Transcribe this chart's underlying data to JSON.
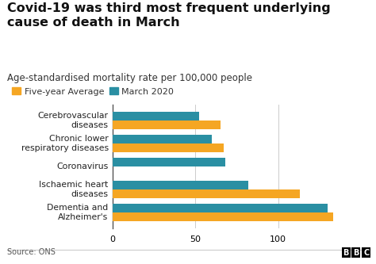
{
  "title": "Covid-19 was third most frequent underlying\ncause of death in March",
  "subtitle": "Age-standardised mortality rate per 100,000 people",
  "categories": [
    "Cerebrovascular\ndiseases",
    "Chronic lower\nrespiratory diseases",
    "Coronavirus",
    "Ischaemic heart\ndiseases",
    "Dementia and\nAlzheimer's"
  ],
  "march_2020": [
    52,
    60,
    68,
    82,
    130
  ],
  "five_year_avg": [
    65,
    67,
    0,
    113,
    133
  ],
  "color_march": "#2a8fa3",
  "color_avg": "#f5a623",
  "legend_labels": [
    "Five-year Average",
    "March 2020"
  ],
  "xlim": [
    0,
    150
  ],
  "xticks": [
    0,
    50,
    100
  ],
  "source": "Source: ONS",
  "background_color": "#ffffff",
  "title_fontsize": 11.5,
  "subtitle_fontsize": 8.5,
  "tick_fontsize": 8,
  "label_fontsize": 7.8,
  "bar_height": 0.38,
  "gridline_color": "#cccccc"
}
